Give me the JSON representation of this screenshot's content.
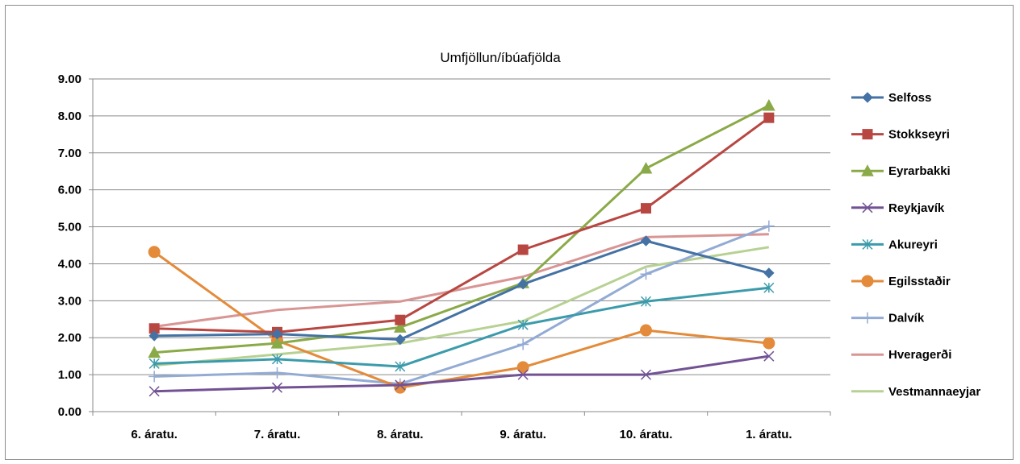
{
  "chart_data": {
    "type": "line",
    "title": "Umfjöllun/íbúafjölda",
    "xlabel": "",
    "ylabel": "",
    "categories": [
      "6. áratu.",
      "7. áratu.",
      "8. áratu.",
      "9. áratu.",
      "10. áratu.",
      "1. áratu."
    ],
    "ylim": [
      0,
      9
    ],
    "yticks": [
      "0.00",
      "1.00",
      "2.00",
      "3.00",
      "4.00",
      "5.00",
      "6.00",
      "7.00",
      "8.00",
      "9.00"
    ],
    "grid": true,
    "legend": "right",
    "series": [
      {
        "name": "Selfoss",
        "color": "#4472a4",
        "marker": "diamond",
        "values": [
          2.05,
          2.1,
          1.95,
          3.45,
          4.62,
          3.75
        ]
      },
      {
        "name": "Stokkseyri",
        "color": "#b84742",
        "marker": "square",
        "values": [
          2.25,
          2.15,
          2.48,
          4.38,
          5.5,
          7.95
        ]
      },
      {
        "name": "Eyrarbakki",
        "color": "#8aaa48",
        "marker": "triangle",
        "values": [
          1.6,
          1.85,
          2.28,
          3.48,
          6.58,
          8.28
        ]
      },
      {
        "name": "Reykjavík",
        "color": "#725294",
        "marker": "x",
        "values": [
          0.55,
          0.65,
          0.72,
          1.0,
          1.0,
          1.5
        ]
      },
      {
        "name": "Akureyri",
        "color": "#3c9bab",
        "marker": "star",
        "values": [
          1.3,
          1.42,
          1.22,
          2.35,
          2.98,
          3.35
        ]
      },
      {
        "name": "Egilsstaðir",
        "color": "#e38b3a",
        "marker": "circle",
        "values": [
          4.32,
          1.92,
          0.65,
          1.2,
          2.2,
          1.85
        ]
      },
      {
        "name": "Dalvík",
        "color": "#93abd4",
        "marker": "plus",
        "values": [
          0.95,
          1.05,
          0.75,
          1.82,
          3.72,
          5.02
        ]
      },
      {
        "name": "Hveragerði",
        "color": "#d89594",
        "marker": "none",
        "values": [
          2.3,
          2.75,
          2.98,
          3.65,
          4.72,
          4.8
        ]
      },
      {
        "name": "Vestmannaeyjar",
        "color": "#b7d193",
        "marker": "none",
        "values": [
          1.25,
          1.55,
          1.85,
          2.45,
          3.92,
          4.45
        ]
      }
    ]
  }
}
